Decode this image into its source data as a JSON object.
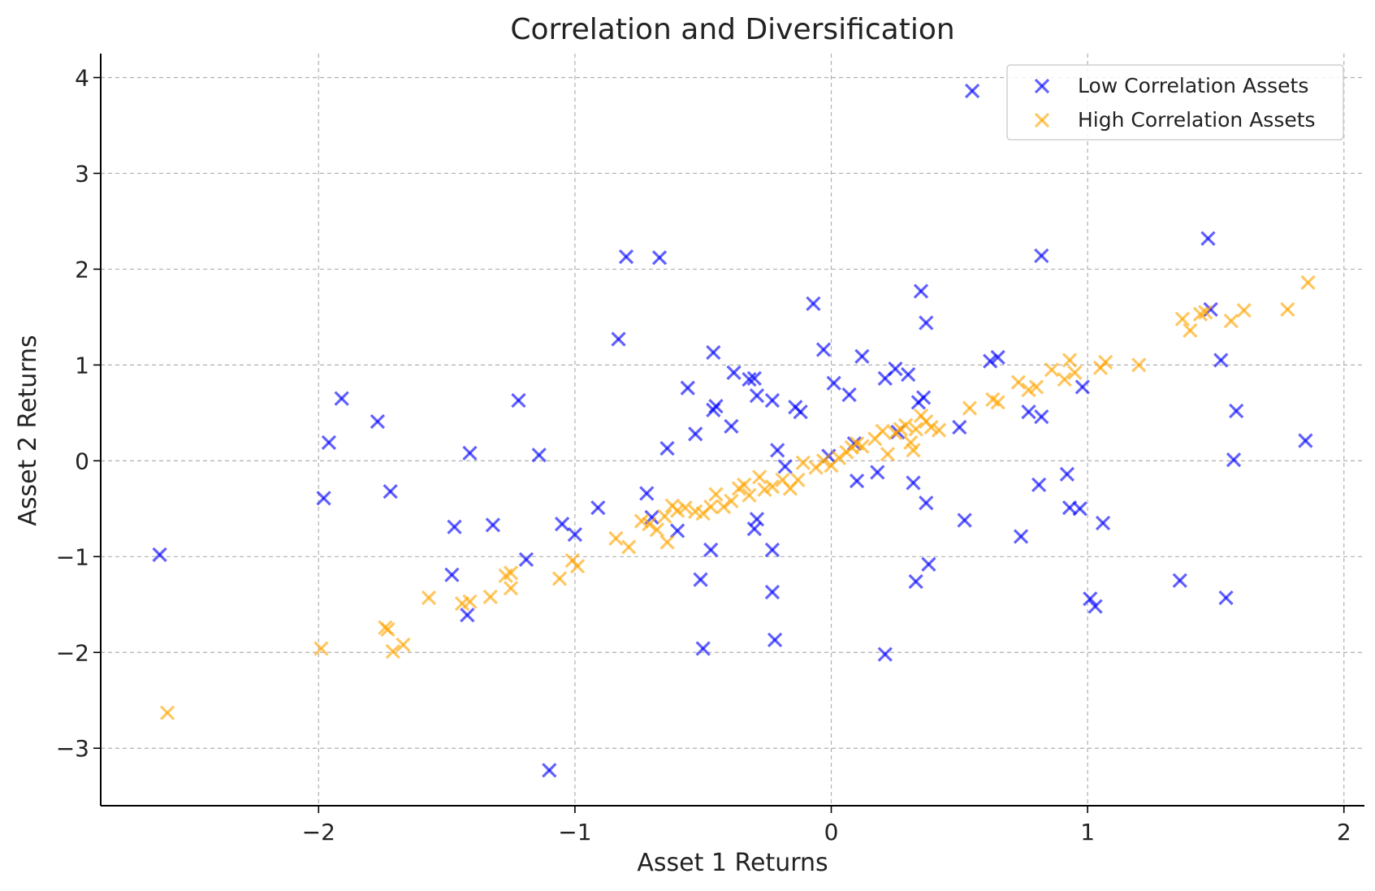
{
  "chart_data": {
    "type": "scatter",
    "title": "Correlation and Diversification",
    "xlabel": "Asset 1 Returns",
    "ylabel": "Asset 2 Returns",
    "xlim": [
      -2.85,
      2.08
    ],
    "ylim": [
      -3.6,
      4.25
    ],
    "xticks": [
      -2,
      -1,
      0,
      1,
      2
    ],
    "xtick_labels": [
      "−2",
      "−1",
      "0",
      "1",
      "2"
    ],
    "yticks": [
      -3,
      -2,
      -1,
      0,
      1,
      2,
      3,
      4
    ],
    "ytick_labels": [
      "−3",
      "−2",
      "−1",
      "0",
      "1",
      "2",
      "3",
      "4"
    ],
    "grid": true,
    "legend_position": "top-right",
    "marker": "x",
    "series": [
      {
        "name": "Low Correlation Assets",
        "color": "#0000ff",
        "points": [
          [
            -2.62,
            -0.98
          ],
          [
            -1.98,
            -0.39
          ],
          [
            -1.96,
            0.19
          ],
          [
            -1.91,
            0.65
          ],
          [
            -1.77,
            0.41
          ],
          [
            -1.72,
            -0.32
          ],
          [
            -1.48,
            -1.19
          ],
          [
            -1.47,
            -0.69
          ],
          [
            -1.41,
            0.08
          ],
          [
            -1.42,
            -1.61
          ],
          [
            -1.32,
            -0.67
          ],
          [
            -1.22,
            0.63
          ],
          [
            -1.19,
            -1.03
          ],
          [
            -1.14,
            0.06
          ],
          [
            -1.1,
            -3.23
          ],
          [
            -1.05,
            -0.66
          ],
          [
            -1.0,
            -0.77
          ],
          [
            -0.91,
            -0.49
          ],
          [
            -0.83,
            1.27
          ],
          [
            -0.8,
            2.13
          ],
          [
            -0.67,
            2.12
          ],
          [
            -0.72,
            -0.34
          ],
          [
            -0.7,
            -0.59
          ],
          [
            -0.64,
            0.13
          ],
          [
            -0.6,
            -0.73
          ],
          [
            -0.56,
            0.76
          ],
          [
            -0.53,
            0.28
          ],
          [
            -0.51,
            -1.24
          ],
          [
            -0.5,
            -1.96
          ],
          [
            -0.47,
            -0.93
          ],
          [
            -0.46,
            1.13
          ],
          [
            -0.46,
            0.53
          ],
          [
            -0.45,
            0.57
          ],
          [
            -0.38,
            0.92
          ],
          [
            -0.39,
            0.36
          ],
          [
            -0.32,
            0.85
          ],
          [
            -0.3,
            0.86
          ],
          [
            -0.29,
            0.68
          ],
          [
            -0.29,
            -0.61
          ],
          [
            -0.3,
            -0.71
          ],
          [
            -0.23,
            0.63
          ],
          [
            -0.23,
            -0.93
          ],
          [
            -0.23,
            -1.37
          ],
          [
            -0.22,
            -1.87
          ],
          [
            -0.21,
            0.11
          ],
          [
            -0.18,
            -0.06
          ],
          [
            -0.14,
            0.56
          ],
          [
            -0.12,
            0.51
          ],
          [
            -0.07,
            1.64
          ],
          [
            -0.03,
            1.16
          ],
          [
            -0.01,
            0.05
          ],
          [
            0.01,
            0.81
          ],
          [
            0.07,
            0.69
          ],
          [
            0.09,
            0.18
          ],
          [
            0.1,
            -0.21
          ],
          [
            0.12,
            1.09
          ],
          [
            0.18,
            -0.12
          ],
          [
            0.21,
            0.86
          ],
          [
            0.21,
            -2.02
          ],
          [
            0.25,
            0.96
          ],
          [
            0.26,
            0.3
          ],
          [
            0.3,
            0.9
          ],
          [
            0.32,
            -0.23
          ],
          [
            0.33,
            -1.26
          ],
          [
            0.34,
            0.61
          ],
          [
            0.35,
            1.77
          ],
          [
            0.37,
            1.44
          ],
          [
            0.36,
            0.66
          ],
          [
            0.37,
            -0.44
          ],
          [
            0.38,
            -1.08
          ],
          [
            0.5,
            0.35
          ],
          [
            0.52,
            -0.62
          ],
          [
            0.55,
            3.86
          ],
          [
            0.62,
            1.04
          ],
          [
            0.65,
            1.08
          ],
          [
            0.74,
            -0.79
          ],
          [
            0.77,
            0.51
          ],
          [
            0.81,
            -0.25
          ],
          [
            0.82,
            0.46
          ],
          [
            0.82,
            2.14
          ],
          [
            0.92,
            -0.14
          ],
          [
            0.93,
            -0.49
          ],
          [
            0.97,
            -0.5
          ],
          [
            0.98,
            0.77
          ],
          [
            1.01,
            -1.44
          ],
          [
            1.03,
            -1.52
          ],
          [
            1.06,
            -0.65
          ],
          [
            1.36,
            -1.25
          ],
          [
            1.47,
            2.32
          ],
          [
            1.48,
            1.58
          ],
          [
            1.52,
            1.05
          ],
          [
            1.54,
            -1.43
          ],
          [
            1.57,
            0.01
          ],
          [
            1.58,
            0.52
          ],
          [
            1.85,
            0.21
          ]
        ]
      },
      {
        "name": "High Correlation Assets",
        "color": "#ffa500",
        "points": [
          [
            -2.59,
            -2.63
          ],
          [
            -1.99,
            -1.96
          ],
          [
            -1.74,
            -1.74
          ],
          [
            -1.73,
            -1.76
          ],
          [
            -1.71,
            -1.99
          ],
          [
            -1.67,
            -1.92
          ],
          [
            -1.57,
            -1.43
          ],
          [
            -1.44,
            -1.49
          ],
          [
            -1.41,
            -1.47
          ],
          [
            -1.33,
            -1.42
          ],
          [
            -1.27,
            -1.2
          ],
          [
            -1.25,
            -1.17
          ],
          [
            -1.25,
            -1.33
          ],
          [
            -1.06,
            -1.23
          ],
          [
            -1.01,
            -1.04
          ],
          [
            -0.99,
            -1.1
          ],
          [
            -0.84,
            -0.81
          ],
          [
            -0.79,
            -0.9
          ],
          [
            -0.74,
            -0.63
          ],
          [
            -0.71,
            -0.66
          ],
          [
            -0.68,
            -0.72
          ],
          [
            -0.65,
            -0.58
          ],
          [
            -0.64,
            -0.85
          ],
          [
            -0.62,
            -0.47
          ],
          [
            -0.6,
            -0.52
          ],
          [
            -0.57,
            -0.49
          ],
          [
            -0.53,
            -0.53
          ],
          [
            -0.5,
            -0.55
          ],
          [
            -0.47,
            -0.48
          ],
          [
            -0.45,
            -0.35
          ],
          [
            -0.42,
            -0.48
          ],
          [
            -0.39,
            -0.42
          ],
          [
            -0.36,
            -0.29
          ],
          [
            -0.34,
            -0.25
          ],
          [
            -0.32,
            -0.36
          ],
          [
            -0.28,
            -0.17
          ],
          [
            -0.26,
            -0.3
          ],
          [
            -0.23,
            -0.27
          ],
          [
            -0.19,
            -0.2
          ],
          [
            -0.16,
            -0.29
          ],
          [
            -0.13,
            -0.2
          ],
          [
            -0.11,
            -0.02
          ],
          [
            -0.06,
            -0.07
          ],
          [
            -0.03,
            0.0
          ],
          [
            0.0,
            -0.05
          ],
          [
            0.03,
            0.03
          ],
          [
            0.06,
            0.09
          ],
          [
            0.08,
            0.14
          ],
          [
            0.1,
            0.18
          ],
          [
            0.12,
            0.15
          ],
          [
            0.17,
            0.23
          ],
          [
            0.2,
            0.31
          ],
          [
            0.22,
            0.07
          ],
          [
            0.25,
            0.29
          ],
          [
            0.27,
            0.33
          ],
          [
            0.29,
            0.37
          ],
          [
            0.31,
            0.19
          ],
          [
            0.32,
            0.11
          ],
          [
            0.33,
            0.33
          ],
          [
            0.35,
            0.47
          ],
          [
            0.37,
            0.41
          ],
          [
            0.39,
            0.35
          ],
          [
            0.42,
            0.32
          ],
          [
            0.54,
            0.55
          ],
          [
            0.63,
            0.64
          ],
          [
            0.65,
            0.61
          ],
          [
            0.73,
            0.82
          ],
          [
            0.77,
            0.74
          ],
          [
            0.8,
            0.77
          ],
          [
            0.86,
            0.95
          ],
          [
            0.91,
            0.85
          ],
          [
            0.93,
            1.05
          ],
          [
            0.95,
            0.92
          ],
          [
            1.05,
            0.97
          ],
          [
            1.07,
            1.03
          ],
          [
            1.2,
            1.0
          ],
          [
            1.37,
            1.48
          ],
          [
            1.4,
            1.36
          ],
          [
            1.44,
            1.53
          ],
          [
            1.46,
            1.55
          ],
          [
            1.56,
            1.46
          ],
          [
            1.61,
            1.57
          ],
          [
            1.78,
            1.58
          ],
          [
            1.86,
            1.86
          ]
        ]
      }
    ]
  }
}
